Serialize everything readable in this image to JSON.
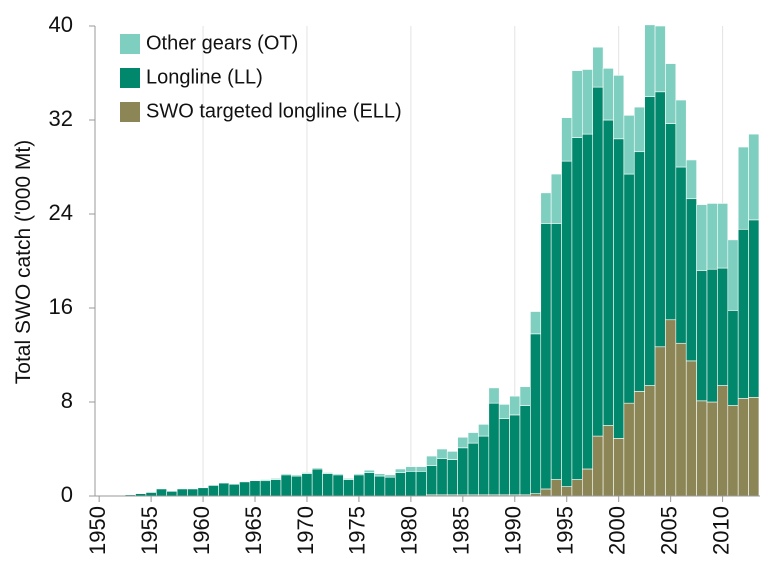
{
  "chart_data": {
    "type": "stacked-bar",
    "y_label": "Total SWO catch ('000 Mt)",
    "x": [
      1950,
      1951,
      1952,
      1953,
      1954,
      1955,
      1956,
      1957,
      1958,
      1959,
      1960,
      1961,
      1962,
      1963,
      1964,
      1965,
      1966,
      1967,
      1968,
      1969,
      1970,
      1971,
      1972,
      1973,
      1974,
      1975,
      1976,
      1977,
      1978,
      1979,
      1980,
      1981,
      1982,
      1983,
      1984,
      1985,
      1986,
      1987,
      1988,
      1989,
      1990,
      1991,
      1992,
      1993,
      1994,
      1995,
      1996,
      1997,
      1998,
      1999,
      2000,
      2001,
      2002,
      2003,
      2004,
      2005,
      2006,
      2007,
      2008,
      2009,
      2010,
      2011,
      2012,
      2013
    ],
    "series": [
      {
        "name": "SWO targeted longline (ELL)",
        "color": "#8c8656",
        "values": [
          0,
          0,
          0,
          0,
          0,
          0,
          0,
          0,
          0,
          0,
          0,
          0,
          0,
          0,
          0,
          0,
          0,
          0,
          0,
          0,
          0,
          0,
          0,
          0,
          0,
          0,
          0,
          0,
          0,
          0,
          0,
          0,
          0.1,
          0.1,
          0.1,
          0.1,
          0.1,
          0.1,
          0.1,
          0.1,
          0.1,
          0.1,
          0.2,
          0.6,
          1.4,
          0.8,
          1.4,
          2.3,
          5.1,
          6.0,
          4.9,
          7.9,
          8.9,
          9.4,
          12.7,
          15.0,
          13.0,
          11.5,
          8.1,
          8.0,
          9.4,
          7.7,
          8.3,
          8.4
        ]
      },
      {
        "name": "Longline (LL)",
        "color": "#00876c",
        "values": [
          0,
          0,
          0,
          0.1,
          0.2,
          0.3,
          0.6,
          0.4,
          0.6,
          0.6,
          0.7,
          0.9,
          1.1,
          1.0,
          1.2,
          1.3,
          1.3,
          1.4,
          1.8,
          1.7,
          1.9,
          2.3,
          1.9,
          1.8,
          1.4,
          1.8,
          2.0,
          1.7,
          1.6,
          2.0,
          2.1,
          2.1,
          2.5,
          3.1,
          3.0,
          4.0,
          4.4,
          5.0,
          7.8,
          6.5,
          6.8,
          7.6,
          13.6,
          22.6,
          21.8,
          27.7,
          29.1,
          28.5,
          29.7,
          26.0,
          25.5,
          19.5,
          20.4,
          24.6,
          21.7,
          16.7,
          15.0,
          13.8,
          11.1,
          11.3,
          10.0,
          8.1,
          14.4,
          15.1
        ]
      },
      {
        "name": "Other gears (OT)",
        "color": "#7fcfc0",
        "values": [
          0,
          0,
          0,
          0,
          0,
          0,
          0,
          0,
          0,
          0,
          0,
          0,
          0,
          0,
          0,
          0,
          0.1,
          0.1,
          0.1,
          0.1,
          0.1,
          0.1,
          0.1,
          0.1,
          0.1,
          0.1,
          0.2,
          0.2,
          0.2,
          0.3,
          0.4,
          0.4,
          0.8,
          0.8,
          0.7,
          0.9,
          0.9,
          1.0,
          1.3,
          1.2,
          1.6,
          1.6,
          1.9,
          2.6,
          4.2,
          3.7,
          5.7,
          5.5,
          3.4,
          4.4,
          5.4,
          5.0,
          3.8,
          6.1,
          5.6,
          5.1,
          5.7,
          3.3,
          5.6,
          5.6,
          5.5,
          6.0,
          7.0,
          7.3
        ]
      }
    ],
    "xlim": [
      1949.6,
      2013.6
    ],
    "xticks": [
      1950,
      1955,
      1960,
      1965,
      1970,
      1975,
      1980,
      1985,
      1990,
      1995,
      2000,
      2005,
      2010
    ],
    "ylim": [
      0,
      40
    ],
    "yticks": [
      0,
      8,
      16,
      24,
      32,
      40
    ],
    "grid": "x",
    "legend": "upper left"
  }
}
